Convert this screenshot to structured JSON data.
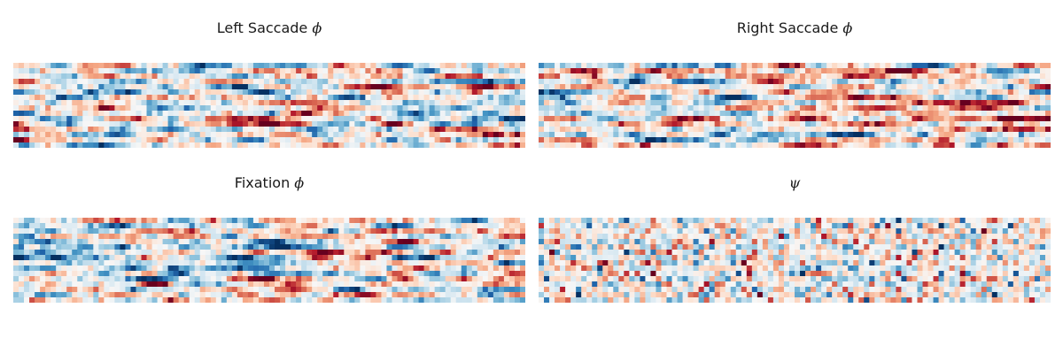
{
  "chart_data": [
    {
      "type": "heatmap",
      "title": "Left Saccade",
      "title_symbol": "ϕ",
      "rows": 16,
      "cols": 96,
      "colormap": "RdBu_r",
      "value_range": [
        -1,
        1
      ],
      "seed": 11
    },
    {
      "type": "heatmap",
      "title": "Right Saccade",
      "title_symbol": "ϕ",
      "rows": 16,
      "cols": 96,
      "colormap": "RdBu_r",
      "value_range": [
        -1,
        1
      ],
      "seed": 23
    },
    {
      "type": "heatmap",
      "title": "Fixation",
      "title_symbol": "ϕ",
      "rows": 16,
      "cols": 96,
      "colormap": "RdBu_r",
      "value_range": [
        -1,
        1
      ],
      "seed": 37
    },
    {
      "type": "heatmap",
      "title": "",
      "title_symbol": "ψ",
      "rows": 16,
      "cols": 96,
      "colormap": "RdBu_r",
      "value_range": [
        -1,
        1
      ],
      "seed": 53
    }
  ]
}
